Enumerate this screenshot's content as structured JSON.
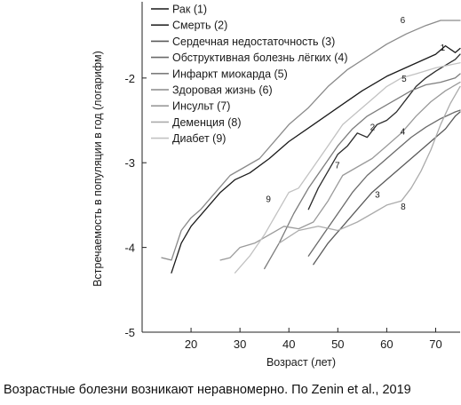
{
  "chart_data": {
    "type": "line",
    "xlabel": "Возраст (лет)",
    "ylabel": "Встречаемость в популяции в год (логарифм)",
    "xlim": [
      10,
      75
    ],
    "ylim": [
      -5,
      -1.1
    ],
    "xticks": [
      20,
      30,
      40,
      50,
      60,
      70
    ],
    "yticks": [
      -5,
      -4,
      -3,
      -2
    ],
    "grid": false,
    "legend_position": "top-left",
    "series": [
      {
        "name": "Рак (1)",
        "label": "1",
        "color": "#1a1a1a",
        "x": [
          16,
          18,
          20,
          23,
          26,
          29,
          32,
          36,
          40,
          45,
          50,
          55,
          60,
          65,
          70,
          72,
          74,
          75
        ],
        "y": [
          -4.3,
          -3.95,
          -3.75,
          -3.55,
          -3.35,
          -3.2,
          -3.12,
          -2.95,
          -2.75,
          -2.55,
          -2.35,
          -2.15,
          -1.98,
          -1.85,
          -1.72,
          -1.62,
          -1.7,
          -1.65
        ]
      },
      {
        "name": "Смерть (2)",
        "label": "2",
        "color": "#2b2b2b",
        "x": [
          44,
          46,
          48,
          50,
          52,
          54,
          56,
          58,
          60,
          62,
          64,
          66,
          68,
          70,
          72,
          74,
          75
        ],
        "y": [
          -3.55,
          -3.3,
          -3.1,
          -2.9,
          -2.8,
          -2.65,
          -2.7,
          -2.55,
          -2.5,
          -2.4,
          -2.25,
          -2.1,
          -2.0,
          -1.92,
          -1.85,
          -1.78,
          -1.72
        ]
      },
      {
        "name": "Сердечная недостаточность (3)",
        "label": "3",
        "color": "#5a5a5a",
        "x": [
          45,
          48,
          51,
          54,
          57,
          60,
          63,
          66,
          69,
          72,
          74,
          75
        ],
        "y": [
          -4.2,
          -3.95,
          -3.75,
          -3.55,
          -3.35,
          -3.2,
          -3.05,
          -2.9,
          -2.75,
          -2.6,
          -2.45,
          -2.4
        ]
      },
      {
        "name": "Обструктивная болезнь лёгких (4)",
        "label": "4",
        "color": "#6a6a6a",
        "x": [
          44,
          47,
          50,
          53,
          56,
          59,
          62,
          65,
          68,
          71,
          74,
          75
        ],
        "y": [
          -4.1,
          -3.85,
          -3.6,
          -3.35,
          -3.15,
          -3.0,
          -2.85,
          -2.7,
          -2.58,
          -2.48,
          -2.4,
          -2.38
        ]
      },
      {
        "name": "Инфаркт миокарда (5)",
        "label": "5",
        "color": "#7d7d7d",
        "x": [
          35,
          38,
          41,
          44,
          47,
          50,
          53,
          56,
          59,
          62,
          65,
          68,
          71,
          74,
          75
        ],
        "y": [
          -4.25,
          -3.95,
          -3.6,
          -3.3,
          -3.05,
          -2.8,
          -2.6,
          -2.45,
          -2.35,
          -2.25,
          -2.15,
          -2.08,
          -2.05,
          -2.0,
          -1.95
        ]
      },
      {
        "name": "Здоровая жизнь (6)",
        "label": "6",
        "color": "#8a8a8a",
        "x": [
          14,
          16,
          18,
          20,
          22,
          25,
          28,
          31,
          34,
          37,
          40,
          44,
          48,
          52,
          56,
          60,
          64,
          68,
          71,
          74,
          75
        ],
        "y": [
          -4.12,
          -4.15,
          -3.8,
          -3.65,
          -3.55,
          -3.35,
          -3.15,
          -3.05,
          -2.95,
          -2.75,
          -2.55,
          -2.35,
          -2.1,
          -1.9,
          -1.75,
          -1.6,
          -1.48,
          -1.38,
          -1.32,
          -1.32,
          -1.32
        ]
      },
      {
        "name": "Инсульт (7)",
        "label": "7",
        "color": "#9a9a9a",
        "x": [
          26,
          28,
          30,
          33,
          36,
          39,
          42,
          45,
          48,
          51,
          54,
          57,
          60,
          63,
          66,
          69,
          72,
          75
        ],
        "y": [
          -4.15,
          -4.12,
          -4.0,
          -3.95,
          -3.85,
          -3.75,
          -3.78,
          -3.7,
          -3.45,
          -3.15,
          -3.05,
          -2.95,
          -2.8,
          -2.65,
          -2.45,
          -2.28,
          -2.15,
          -2.05
        ]
      },
      {
        "name": "Деменция (8)",
        "label": "8",
        "color": "#ababab",
        "x": [
          38,
          42,
          46,
          50,
          54,
          57,
          60,
          63,
          65,
          67,
          69,
          71,
          73,
          75
        ],
        "y": [
          -3.95,
          -3.8,
          -3.75,
          -3.8,
          -3.7,
          -3.6,
          -3.5,
          -3.45,
          -3.3,
          -3.1,
          -2.85,
          -2.55,
          -2.3,
          -2.1
        ]
      },
      {
        "name": "Диабет (9)",
        "label": "9",
        "color": "#c2c2c2",
        "x": [
          29,
          32,
          35,
          38,
          40,
          42,
          45,
          48,
          51,
          54,
          57,
          60,
          63,
          66,
          70,
          75
        ],
        "y": [
          -4.3,
          -4.1,
          -3.85,
          -3.55,
          -3.35,
          -3.3,
          -3.05,
          -2.8,
          -2.55,
          -2.4,
          -2.25,
          -2.1,
          -2.0,
          -1.95,
          -1.88,
          -1.82
        ]
      }
    ]
  },
  "caption": "Возрастные болезни возникают неравномерно. По Zenin et al., 2019"
}
